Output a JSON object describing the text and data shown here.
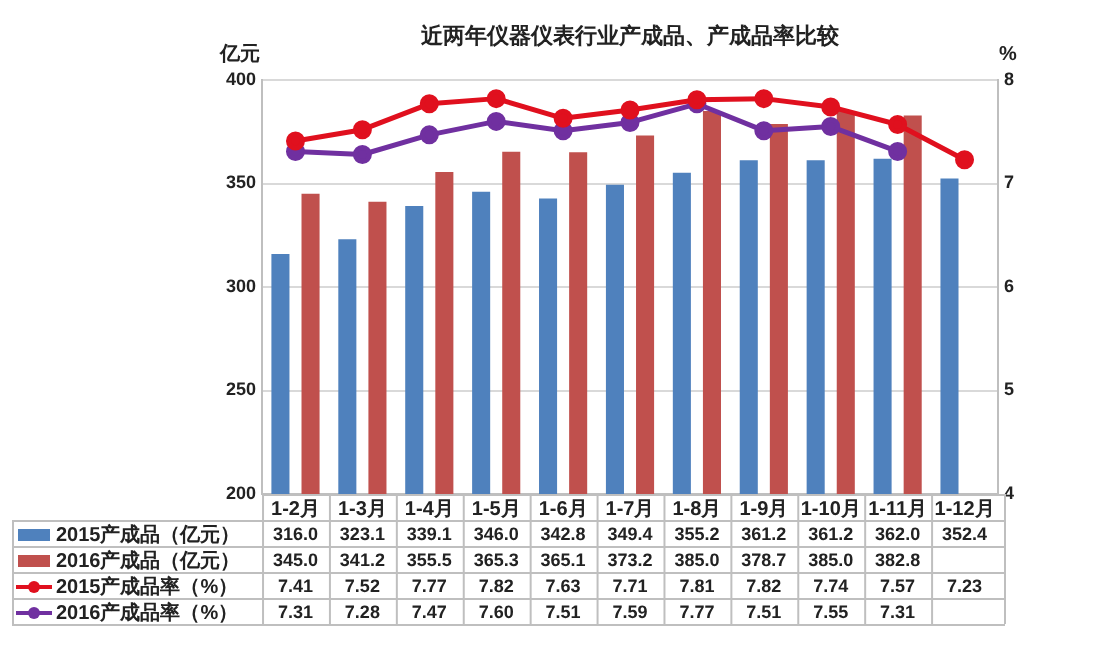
{
  "chart_data": {
    "type": "bar",
    "title": "近两年仪器仪表行业产成品、产成品率比较",
    "ylabel": "亿元",
    "y2label": "%",
    "categories": [
      "1-2月",
      "1-3月",
      "1-4月",
      "1-5月",
      "1-6月",
      "1-7月",
      "1-8月",
      "1-9月",
      "1-10月",
      "1-11月",
      "1-12月"
    ],
    "series": [
      {
        "name": "2015产成品（亿元）",
        "color": "#4f81bd",
        "values": [
          316.0,
          323.1,
          339.1,
          346.0,
          342.8,
          349.4,
          355.2,
          361.2,
          361.2,
          362.0,
          352.4
        ],
        "value_labels": [
          "316.0",
          "323.1",
          "339.1",
          "346.0",
          "342.8",
          "349.4",
          "355.2",
          "361.2",
          "361.2",
          "362.0",
          "352.4"
        ]
      },
      {
        "name": "2016产成品（亿元）",
        "color": "#c0504d",
        "values": [
          345.0,
          341.2,
          355.5,
          365.3,
          365.1,
          373.2,
          385.0,
          378.7,
          385.0,
          382.8,
          null
        ],
        "value_labels": [
          "345.0",
          "341.2",
          "355.5",
          "365.3",
          "365.1",
          "373.2",
          "385.0",
          "378.7",
          "385.0",
          "382.8",
          null
        ]
      },
      {
        "name": "2015产成品率（%）",
        "type": "line",
        "axis": "y2",
        "color": "#e0101e",
        "values": [
          7.41,
          7.52,
          7.77,
          7.82,
          7.63,
          7.71,
          7.81,
          7.82,
          7.74,
          7.57,
          7.23
        ],
        "value_labels": [
          "7.41",
          "7.52",
          "7.77",
          "7.82",
          "7.63",
          "7.71",
          "7.81",
          "7.82",
          "7.74",
          "7.57",
          "7.23"
        ]
      },
      {
        "name": "2016产成品率（%）",
        "type": "line",
        "axis": "y2",
        "color": "#7030a0",
        "values": [
          7.31,
          7.28,
          7.47,
          7.6,
          7.51,
          7.59,
          7.77,
          7.51,
          7.55,
          7.31,
          null
        ],
        "value_labels": [
          "7.31",
          "7.28",
          "7.47",
          "7.60",
          "7.51",
          "7.59",
          "7.77",
          "7.51",
          "7.55",
          "7.31",
          null
        ]
      }
    ],
    "ylim": [
      200,
      400
    ],
    "yticks": [
      200,
      250,
      300,
      350,
      400
    ],
    "y2lim": [
      4,
      8
    ],
    "y2ticks": [
      4,
      5,
      6,
      7,
      8
    ],
    "grid": "y",
    "legend": "bottom left",
    "marker": "circle",
    "line_style": "solid"
  }
}
